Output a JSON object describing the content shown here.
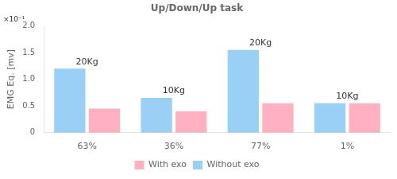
{
  "chart_data": {
    "type": "bar",
    "title": "Up/Down/Up task",
    "ylabel": "EMG Eq. [mv]",
    "categories": [
      "63%",
      "36%",
      "77%",
      "1%"
    ],
    "series": [
      {
        "name": "Without exo",
        "values": [
          0.12,
          0.065,
          0.155,
          0.055
        ]
      },
      {
        "name": "With exo",
        "values": [
          0.045,
          0.04,
          0.055,
          0.055
        ]
      }
    ],
    "ylim": [
      0,
      0.2
    ],
    "yticks": [
      0,
      {
        "value": 0.05,
        "label": "0.5"
      },
      {
        "value": 0.1,
        "label": "1.0"
      },
      {
        "value": 0.15,
        "label": "1.5"
      },
      {
        "value": 0.2,
        "label": "2.0"
      }
    ],
    "annotations": [
      {
        "text": "20Kg",
        "category": "63%"
      },
      {
        "text": "10Kg",
        "category": "36%"
      },
      {
        "text": "20Kg",
        "category": "77%"
      },
      {
        "text": "10Kg",
        "category": "1%"
      },
      {
        "text": "×10⁻¹",
        "axis": "y"
      }
    ],
    "grid": false,
    "legend": "bottom"
  }
}
